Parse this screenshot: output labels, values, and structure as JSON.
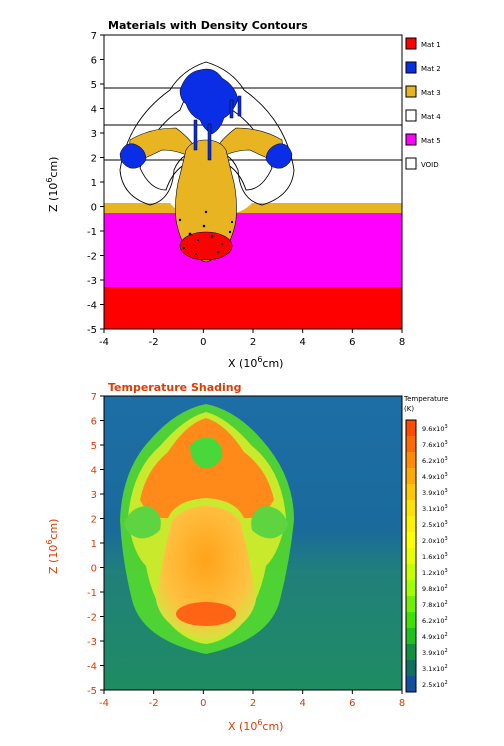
{
  "chart_data": [
    {
      "type": "heatmap",
      "title": "Materials with Density Contours",
      "xlabel_base": "X (10",
      "xlabel_exp": "6",
      "xlabel_unit": "cm)",
      "ylabel_base": "Z (10",
      "ylabel_exp": "6",
      "ylabel_unit": "cm)",
      "xlim": [
        -4,
        8
      ],
      "ylim": [
        -5,
        7
      ],
      "xticks": [
        "-4",
        "-2",
        "0",
        "2",
        "4",
        "6",
        "8"
      ],
      "yticks": [
        "-5",
        "-4",
        "-3",
        "-2",
        "-1",
        "0",
        "1",
        "2",
        "3",
        "4",
        "5",
        "6",
        "7"
      ],
      "legend": [
        {
          "name": "Mat 1",
          "color": "#ff0000"
        },
        {
          "name": "Mat 2",
          "color": "#0a2ee6"
        },
        {
          "name": "Mat 3",
          "color": "#e8b422"
        },
        {
          "name": "Mat 4",
          "color": "#ffffff"
        },
        {
          "name": "Mat 5",
          "color": "#ff00ff"
        },
        {
          "name": "VOID",
          "color": "#ffffff"
        }
      ],
      "layers": [
        {
          "material": "Mat 1",
          "z_from": -5,
          "z_to": -3.3
        },
        {
          "material": "Mat 5",
          "z_from": -3.3,
          "z_to": -0.3
        },
        {
          "material": "Mat 3",
          "z_from": -0.3,
          "z_to": 0.0
        }
      ],
      "contour_levels_z": [
        4.8,
        3.3,
        1.9
      ]
    },
    {
      "type": "heatmap",
      "title": "Temperature Shading",
      "xlabel_base": "X (10",
      "xlabel_exp": "6",
      "xlabel_unit": "cm)",
      "ylabel_base": "Z (10",
      "ylabel_exp": "6",
      "ylabel_unit": "cm)",
      "xlim": [
        -4,
        8
      ],
      "ylim": [
        -5,
        7
      ],
      "xticks": [
        "-4",
        "-2",
        "0",
        "2",
        "4",
        "6",
        "8"
      ],
      "yticks": [
        "-5",
        "-4",
        "-3",
        "-2",
        "-1",
        "0",
        "1",
        "2",
        "3",
        "4",
        "5",
        "6",
        "7"
      ],
      "colorbar_title": "Temperature",
      "colorbar_unit": "(K)",
      "colorbar": [
        {
          "mant": "9.6x10",
          "exp": "3",
          "color": "#ff4a00"
        },
        {
          "mant": "7.6x10",
          "exp": "3",
          "color": "#ff6a00"
        },
        {
          "mant": "6.2x10",
          "exp": "3",
          "color": "#ff8c00"
        },
        {
          "mant": "4.9x10",
          "exp": "3",
          "color": "#ffaa00"
        },
        {
          "mant": "3.9x10",
          "exp": "3",
          "color": "#ffc800"
        },
        {
          "mant": "3.1x10",
          "exp": "3",
          "color": "#ffe200"
        },
        {
          "mant": "2.5x10",
          "exp": "3",
          "color": "#fff200"
        },
        {
          "mant": "2.0x10",
          "exp": "3",
          "color": "#ffff00"
        },
        {
          "mant": "1.6x10",
          "exp": "3",
          "color": "#e8ff00"
        },
        {
          "mant": "1.2x10",
          "exp": "3",
          "color": "#c8ff00"
        },
        {
          "mant": "9.8x10",
          "exp": "2",
          "color": "#a0ff00"
        },
        {
          "mant": "7.8x10",
          "exp": "2",
          "color": "#70f000"
        },
        {
          "mant": "6.2x10",
          "exp": "2",
          "color": "#40e000"
        },
        {
          "mant": "4.9x10",
          "exp": "2",
          "color": "#20c020"
        },
        {
          "mant": "3.9x10",
          "exp": "2",
          "color": "#109040"
        },
        {
          "mant": "3.1x10",
          "exp": "2",
          "color": "#107060"
        },
        {
          "mant": "2.5x10",
          "exp": "2",
          "color": "#1050a0"
        }
      ]
    }
  ]
}
